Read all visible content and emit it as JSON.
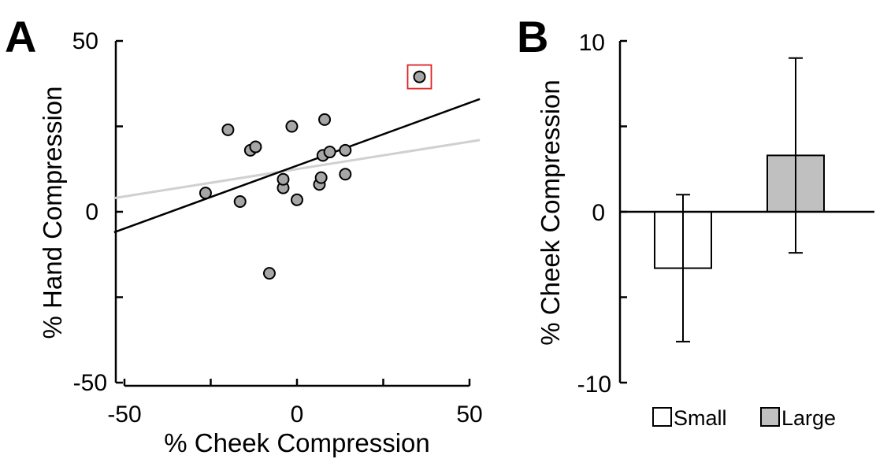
{
  "panel_a": {
    "letter": "A",
    "x_ticks": [
      "-50",
      "0",
      "50"
    ],
    "y_ticks": [
      "50",
      "0",
      "-50"
    ]
  },
  "panel_b": {
    "letter": "B",
    "y_ticks": [
      "10",
      "0",
      "-10"
    ]
  },
  "colors": {
    "point_fill": "#a6a6a6",
    "fit_line": "#000000",
    "reference_line": "#d0d0d0",
    "highlight_box": "#e02020",
    "small_bar": "#ffffff",
    "large_bar": "#c0c0c0"
  },
  "chart_data": [
    {
      "type": "scatter",
      "xlabel": "% Cheek Compression",
      "ylabel": "% Hand Compression",
      "xlim": [
        -50,
        50
      ],
      "ylim": [
        -50,
        50
      ],
      "x_ticks": [
        -50,
        0,
        50
      ],
      "y_ticks": [
        -50,
        0,
        50
      ],
      "points": [
        {
          "x": -26.5,
          "y": 5.5
        },
        {
          "x": -20,
          "y": 24
        },
        {
          "x": -16.5,
          "y": 3
        },
        {
          "x": -13.5,
          "y": 18
        },
        {
          "x": -12,
          "y": 19
        },
        {
          "x": -8,
          "y": -18
        },
        {
          "x": -4,
          "y": 7
        },
        {
          "x": -4,
          "y": 9.5
        },
        {
          "x": -1.5,
          "y": 25
        },
        {
          "x": 0,
          "y": 3.5
        },
        {
          "x": 6.5,
          "y": 8
        },
        {
          "x": 7,
          "y": 10
        },
        {
          "x": 7.5,
          "y": 16.5
        },
        {
          "x": 8,
          "y": 27
        },
        {
          "x": 9.5,
          "y": 17.5
        },
        {
          "x": 14,
          "y": 11
        },
        {
          "x": 14,
          "y": 18
        },
        {
          "x": 35.5,
          "y": 39.5
        }
      ],
      "highlighted_point_index": 17,
      "fit_lines": [
        {
          "role": "fit",
          "x": [
            -53,
            53
          ],
          "y": [
            -6,
            33
          ]
        },
        {
          "role": "reference",
          "x": [
            -53,
            53
          ],
          "y": [
            4,
            21
          ]
        }
      ],
      "grid": false
    },
    {
      "type": "bar",
      "ylabel": "% Cheek Compression",
      "categories": [
        "Small",
        "Large"
      ],
      "values": [
        -3.3,
        3.3
      ],
      "errors": [
        4.3,
        5.7
      ],
      "ylim": [
        -10,
        10
      ],
      "y_ticks": [
        -10,
        0,
        10
      ],
      "legend": [
        "Small",
        "Large"
      ],
      "legend_position": "bottom",
      "grid": false
    }
  ]
}
